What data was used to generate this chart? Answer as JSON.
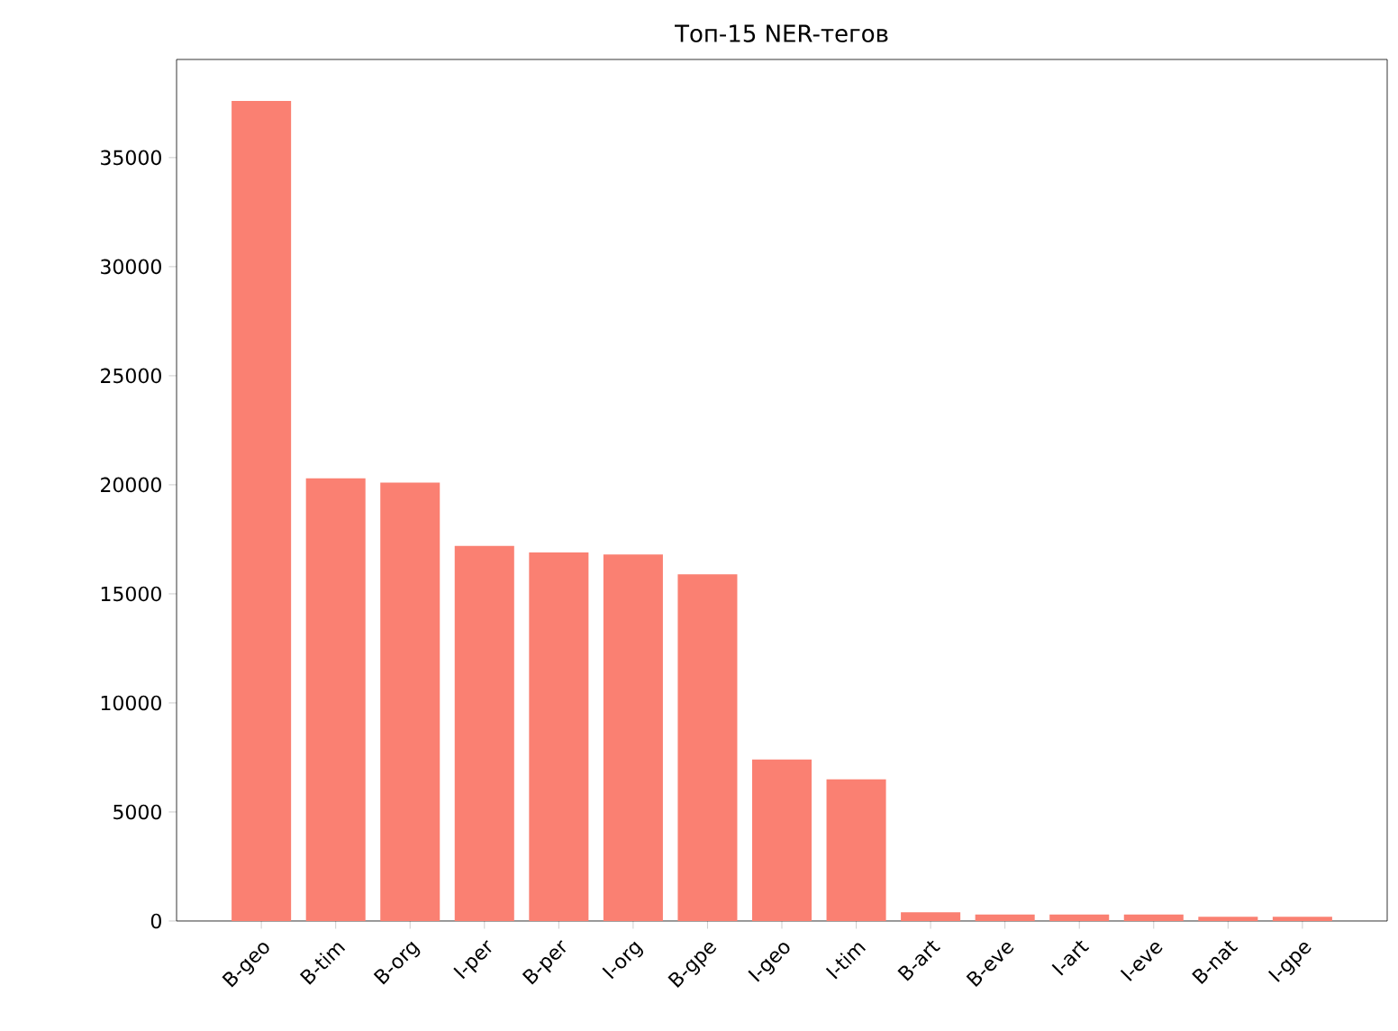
{
  "chart_data": {
    "type": "bar",
    "title": "Топ-15 NER-тегов",
    "categories": [
      "B-geo",
      "B-tim",
      "B-org",
      "I-per",
      "B-per",
      "I-org",
      "B-gpe",
      "I-geo",
      "I-tim",
      "B-art",
      "B-eve",
      "I-art",
      "I-eve",
      "B-nat",
      "I-gpe"
    ],
    "values": [
      37600,
      20300,
      20100,
      17200,
      16900,
      16800,
      15900,
      7400,
      6500,
      400,
      300,
      300,
      300,
      200,
      200
    ],
    "color": "#fa8072",
    "ylim": [
      0,
      39500
    ],
    "yticks": [
      0,
      5000,
      10000,
      15000,
      20000,
      25000,
      30000,
      35000
    ],
    "grid": false
  }
}
